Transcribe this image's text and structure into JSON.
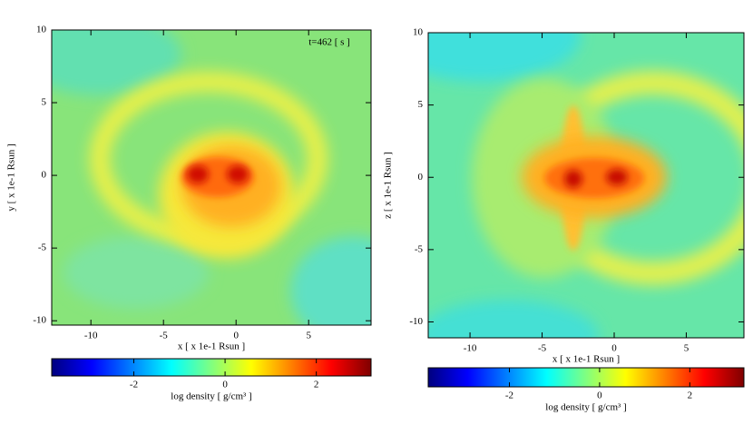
{
  "chart_data": [
    {
      "type": "heatmap",
      "xlabel": "x [ x 1e-1 Rsun ]",
      "ylabel": "y [ x 1e-1 Rsun ]",
      "annotation": "t=462 [ s ]",
      "xlim": [
        -12.7,
        9.3
      ],
      "ylim": [
        -10.3,
        10
      ],
      "xticks": [
        -10,
        -5,
        0,
        5
      ],
      "yticks": [
        -10,
        -5,
        0,
        5,
        10
      ],
      "colorbar": {
        "label": "log density [ g/cm³ ]",
        "lim": [
          -3.8,
          3.2
        ],
        "ticks": [
          -2,
          0,
          2
        ],
        "colormap": [
          "#00007f",
          "#0000ff",
          "#0080ff",
          "#00ffff",
          "#80ff80",
          "#ffff00",
          "#ff8000",
          "#ff0000",
          "#7f0000"
        ]
      }
    },
    {
      "type": "heatmap",
      "xlabel": "x [ x 1e-1 Rsun ]",
      "ylabel": "z [ x 1e-1 Rsun ]",
      "xlim": [
        -12.9,
        9.0
      ],
      "ylim": [
        -11.1,
        10
      ],
      "xticks": [
        -10,
        -5,
        0,
        5
      ],
      "yticks": [
        -10,
        -5,
        0,
        5,
        10
      ],
      "colorbar": {
        "label": "log density [ g/cm³ ]",
        "lim": [
          -3.8,
          3.2
        ],
        "ticks": [
          -2,
          0,
          2
        ],
        "colormap": [
          "#00007f",
          "#0000ff",
          "#0080ff",
          "#00ffff",
          "#80ff80",
          "#ffff00",
          "#ff8000",
          "#ff0000",
          "#7f0000"
        ]
      }
    }
  ]
}
